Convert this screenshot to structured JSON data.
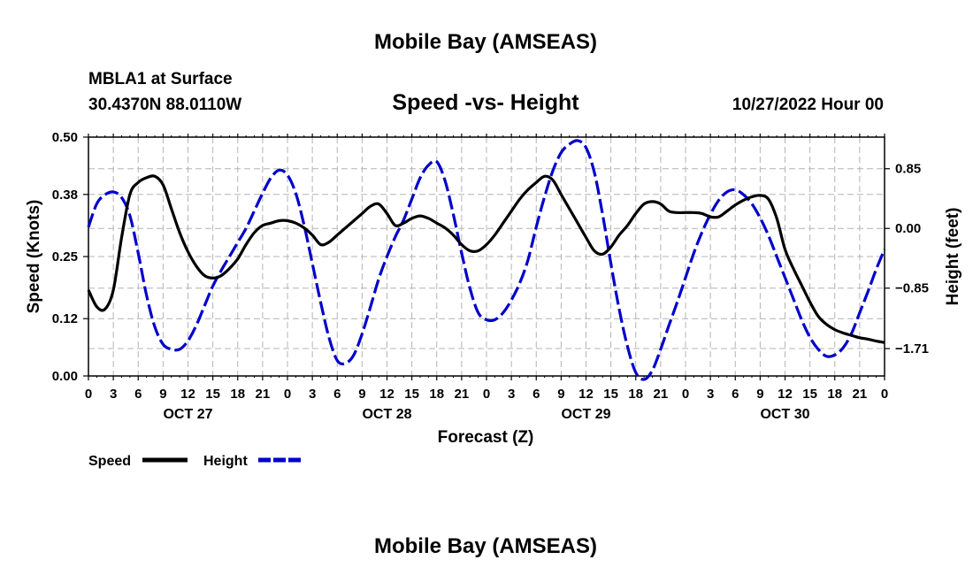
{
  "header": {
    "title": "Mobile Bay (AMSEAS)",
    "station": "MBLA1 at Surface",
    "coords": "30.4370N  88.0110W",
    "subtitle": "Speed -vs- Height",
    "datetime": "10/27/2022 Hour 00"
  },
  "footer": {
    "title": "Mobile Bay (AMSEAS)"
  },
  "chart_data": {
    "type": "line",
    "title": "Speed -vs- Height",
    "xlabel": "Forecast (Z)",
    "ylabel": "Speed (Knots)",
    "y2label": "Height (feet)",
    "x_units": "hours since 2022-10-27 00Z",
    "xlim": [
      0,
      96
    ],
    "ylim": [
      0,
      0.5
    ],
    "y2lim": [
      -2.1,
      1.3
    ],
    "yticks": [
      "0.00",
      "0.12",
      "0.25",
      "0.38",
      "0.50"
    ],
    "y2ticks": [
      {
        "value": 0.85,
        "label": "0.85"
      },
      {
        "value": 0.0,
        "label": "0.00"
      },
      {
        "value": -0.85,
        "label": "−0.85"
      },
      {
        "value": -1.71,
        "label": "−1.71"
      }
    ],
    "xtick_labels": [
      "0",
      "3",
      "6",
      "9",
      "12",
      "15",
      "18",
      "21",
      "0",
      "3",
      "6",
      "9",
      "12",
      "15",
      "18",
      "21",
      "0",
      "3",
      "6",
      "9",
      "12",
      "15",
      "18",
      "21",
      "0",
      "3",
      "6",
      "9",
      "12",
      "15",
      "18",
      "21",
      "0"
    ],
    "day_labels": [
      {
        "hour": 12,
        "label": "OCT 27"
      },
      {
        "hour": 36,
        "label": "OCT 28"
      },
      {
        "hour": 60,
        "label": "OCT 29"
      },
      {
        "hour": 84,
        "label": "OCT 30"
      }
    ],
    "series": [
      {
        "name": "Speed",
        "axis": "left",
        "color": "#000000",
        "dash": "solid",
        "x": [
          0,
          1,
          2,
          3,
          4,
          5,
          6,
          7,
          8,
          9,
          10,
          11,
          12,
          13,
          14,
          15,
          16,
          17,
          18,
          19,
          20,
          21,
          22,
          23,
          24,
          25,
          26,
          27,
          28,
          29,
          30,
          31,
          32,
          33,
          34,
          35,
          36,
          37,
          38,
          39,
          40,
          41,
          42,
          43,
          44,
          45,
          46,
          47,
          48,
          49,
          50,
          51,
          52,
          53,
          54,
          55,
          56,
          57,
          58,
          59,
          60,
          61,
          62,
          63,
          64,
          65,
          66,
          67,
          68,
          69,
          70,
          71,
          72,
          73,
          74,
          75,
          76,
          77,
          78,
          79,
          80,
          81,
          82,
          83,
          84,
          85,
          86,
          87,
          88,
          89,
          90,
          91,
          92,
          93,
          94,
          95,
          96
        ],
        "values": [
          0.18,
          0.145,
          0.14,
          0.18,
          0.29,
          0.38,
          0.405,
          0.415,
          0.418,
          0.4,
          0.35,
          0.3,
          0.26,
          0.23,
          0.21,
          0.205,
          0.21,
          0.225,
          0.245,
          0.275,
          0.3,
          0.315,
          0.32,
          0.325,
          0.325,
          0.32,
          0.31,
          0.295,
          0.275,
          0.28,
          0.295,
          0.31,
          0.325,
          0.34,
          0.355,
          0.36,
          0.34,
          0.315,
          0.32,
          0.33,
          0.335,
          0.33,
          0.32,
          0.31,
          0.295,
          0.275,
          0.262,
          0.262,
          0.275,
          0.295,
          0.32,
          0.345,
          0.37,
          0.39,
          0.405,
          0.418,
          0.41,
          0.38,
          0.35,
          0.32,
          0.29,
          0.262,
          0.255,
          0.27,
          0.295,
          0.315,
          0.34,
          0.36,
          0.365,
          0.36,
          0.345,
          0.342,
          0.342,
          0.342,
          0.34,
          0.333,
          0.333,
          0.345,
          0.358,
          0.368,
          0.375,
          0.378,
          0.37,
          0.33,
          0.265,
          0.225,
          0.19,
          0.155,
          0.125,
          0.108,
          0.097,
          0.09,
          0.085,
          0.08,
          0.077,
          0.073,
          0.07
        ]
      },
      {
        "name": "Height",
        "axis": "right",
        "color": "#0000cc",
        "dash": "dashed",
        "x": [
          0,
          1,
          2,
          3,
          4,
          5,
          6,
          7,
          8,
          9,
          10,
          11,
          12,
          13,
          14,
          15,
          16,
          17,
          18,
          19,
          20,
          21,
          22,
          23,
          24,
          25,
          26,
          27,
          28,
          29,
          30,
          31,
          32,
          33,
          34,
          35,
          36,
          37,
          38,
          39,
          40,
          41,
          42,
          43,
          44,
          45,
          46,
          47,
          48,
          49,
          50,
          51,
          52,
          53,
          54,
          55,
          56,
          57,
          58,
          59,
          60,
          61,
          62,
          63,
          64,
          65,
          66,
          67,
          68,
          69,
          70,
          71,
          72,
          73,
          74,
          75,
          76,
          77,
          78,
          79,
          80,
          81,
          82,
          83,
          84,
          85,
          86,
          87,
          88,
          89,
          90,
          91,
          92,
          93,
          94,
          95,
          96
        ],
        "values": [
          0.02,
          0.35,
          0.48,
          0.52,
          0.44,
          0.18,
          -0.35,
          -0.95,
          -1.4,
          -1.65,
          -1.72,
          -1.72,
          -1.6,
          -1.38,
          -1.1,
          -0.82,
          -0.6,
          -0.4,
          -0.2,
          0.0,
          0.25,
          0.5,
          0.72,
          0.83,
          0.76,
          0.5,
          0.05,
          -0.5,
          -1.05,
          -1.55,
          -1.88,
          -1.92,
          -1.8,
          -1.5,
          -1.12,
          -0.72,
          -0.4,
          -0.12,
          0.12,
          0.42,
          0.72,
          0.9,
          0.95,
          0.68,
          0.2,
          -0.35,
          -0.85,
          -1.2,
          -1.3,
          -1.3,
          -1.2,
          -1.02,
          -0.78,
          -0.45,
          0.02,
          0.45,
          0.82,
          1.08,
          1.2,
          1.25,
          1.15,
          0.8,
          0.2,
          -0.5,
          -1.15,
          -1.68,
          -2.05,
          -2.15,
          -2.02,
          -1.72,
          -1.38,
          -1.05,
          -0.7,
          -0.35,
          -0.05,
          0.2,
          0.4,
          0.52,
          0.55,
          0.48,
          0.35,
          0.15,
          -0.1,
          -0.4,
          -0.7,
          -1.0,
          -1.3,
          -1.55,
          -1.72,
          -1.82,
          -1.8,
          -1.7,
          -1.5,
          -1.2,
          -0.9,
          -0.58,
          -0.3
        ]
      }
    ],
    "legend": {
      "placement": "bottom-left",
      "entries": [
        "Speed",
        "Height"
      ]
    }
  }
}
